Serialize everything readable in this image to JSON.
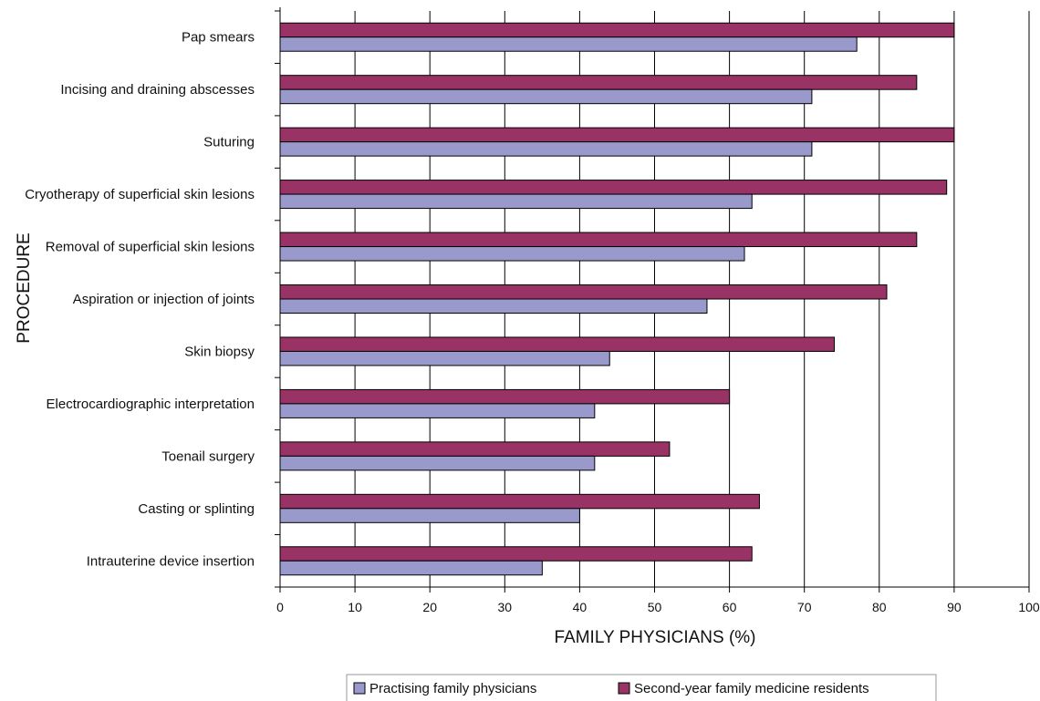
{
  "chart_data": {
    "type": "bar",
    "orientation": "horizontal",
    "categories": [
      "Pap smears",
      "Incising and draining abscesses",
      "Suturing",
      "Cryotherapy of superficial skin lesions",
      "Removal of superficial skin lesions",
      "Aspiration or injection of joints",
      "Skin biopsy",
      "Electrocardiographic interpretation",
      "Toenail surgery",
      "Casting or splinting",
      "Intrauterine device insertion"
    ],
    "series": [
      {
        "name": "Second-year family medicine residents",
        "color": "#993366",
        "values": [
          90,
          85,
          90,
          89,
          85,
          81,
          74,
          60,
          52,
          64,
          63
        ]
      },
      {
        "name": "Practising family physicians",
        "color": "#9999cc",
        "values": [
          77,
          71,
          71,
          63,
          62,
          57,
          44,
          42,
          42,
          40,
          35
        ]
      }
    ],
    "xlabel": "FAMILY PHYSICIANS (%)",
    "ylabel": "PROCEDURE",
    "xlim": [
      0,
      100
    ],
    "xticks": [
      "0",
      "10",
      "20",
      "30",
      "40",
      "50",
      "60",
      "70",
      "80",
      "90",
      "100"
    ],
    "grid": "vertical",
    "legend": {
      "position": "bottom",
      "entries": [
        "Practising family physicians",
        "Second-year family medicine residents"
      ]
    }
  }
}
